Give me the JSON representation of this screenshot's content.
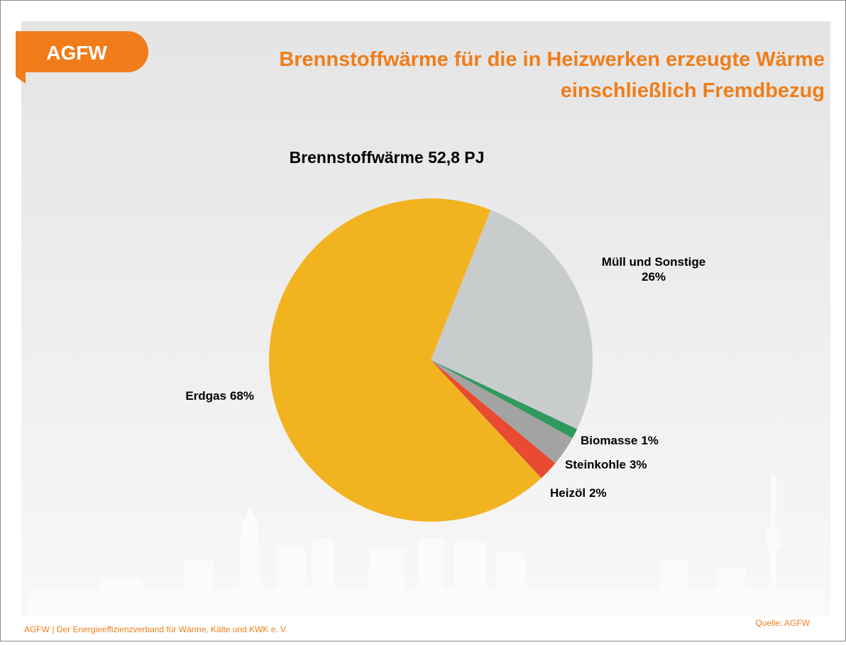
{
  "logo": "AGFW",
  "header": {
    "title_lines": [
      "Brennstoffwärme für die in Heizwerken erzeugte Wärme",
      "einschließlich Fremdbezug"
    ]
  },
  "chart_data": {
    "type": "pie",
    "title": "Brennstoffwärme 52,8 PJ",
    "categories": [
      "Müll und Sonstige",
      "Biomasse",
      "Steinkohle",
      "Heizöl",
      "Erdgas"
    ],
    "values": [
      26,
      1,
      3,
      2,
      68
    ],
    "value_labels": [
      "26%",
      "1%",
      "3%",
      "2%",
      "68%"
    ],
    "colors": [
      "#c9cccc",
      "#2f9a5e",
      "#a3a3a3",
      "#e84b31",
      "#f2b320"
    ]
  },
  "source": "Quelle: AGFW",
  "footer": "AGFW | Der Energieeffizienzverband für Wärme, Kälte und KWK e. V."
}
